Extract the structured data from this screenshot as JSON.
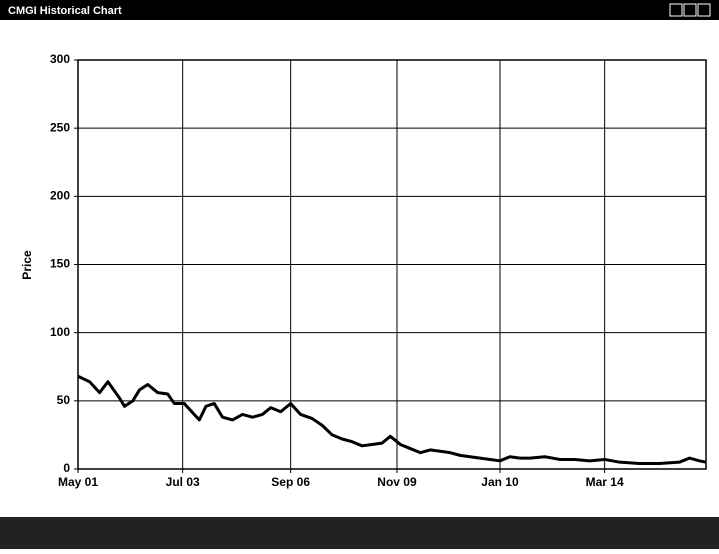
{
  "window": {
    "title": "CMGI Historical Chart"
  },
  "chart_data": {
    "type": "line",
    "ylabel": "Price",
    "x": [
      0,
      7,
      13,
      18,
      25,
      28,
      33,
      37,
      42,
      48,
      54,
      58,
      64,
      70,
      73,
      77,
      82,
      87,
      93,
      99,
      105,
      111,
      116,
      122,
      128,
      134,
      141,
      147,
      153,
      159,
      165,
      171,
      177,
      183,
      188,
      194,
      200,
      206,
      212,
      218,
      224,
      230,
      236,
      242,
      248,
      254,
      260,
      266,
      272,
      281,
      290,
      299,
      308,
      317,
      326,
      338,
      350,
      362,
      368,
      374,
      378
    ],
    "values": [
      68,
      64,
      56,
      64,
      52,
      46,
      50,
      58,
      62,
      56,
      55,
      48,
      48,
      40,
      36,
      46,
      48,
      38,
      36,
      40,
      38,
      40,
      45,
      42,
      48,
      40,
      37,
      32,
      25,
      22,
      20,
      17,
      18,
      19,
      24,
      18,
      15,
      12,
      14,
      13,
      12,
      10,
      9,
      8,
      7,
      6,
      9,
      8,
      8,
      9,
      7,
      7,
      6,
      7,
      5,
      4,
      4,
      5,
      8,
      6,
      5
    ],
    "color": "#000000",
    "xlim": [
      0,
      378
    ],
    "xticks": [
      {
        "value": 0,
        "label": "May 01"
      },
      {
        "value": 63,
        "label": "Jul 03"
      },
      {
        "value": 128,
        "label": "Sep 06"
      },
      {
        "value": 192,
        "label": "Nov 09"
      },
      {
        "value": 254,
        "label": "Jan 10"
      },
      {
        "value": 317,
        "label": "Mar 14"
      }
    ],
    "ylim": [
      0,
      300
    ],
    "yticks": [
      0,
      50,
      100,
      150,
      200,
      250,
      300
    ],
    "grid": true
  }
}
